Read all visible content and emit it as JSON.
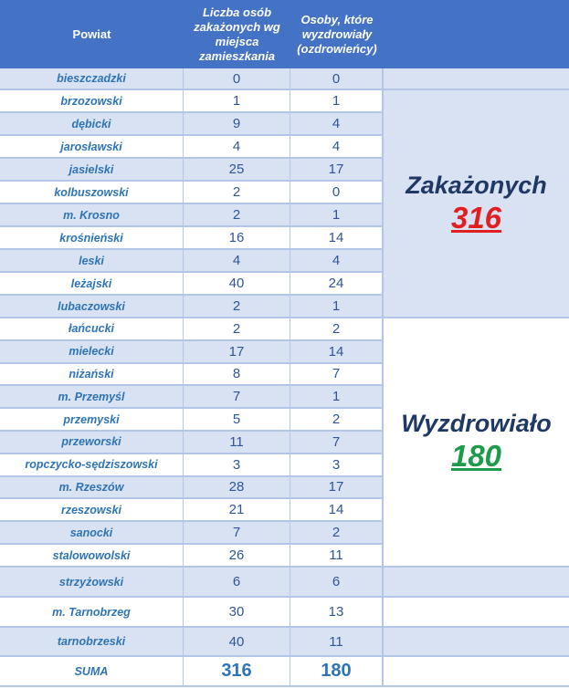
{
  "header": {
    "col1": "Powiat",
    "col2": "Liczba osób zakażonych wg miejsca zamieszkania",
    "col3": "Osoby, które wyzdrowiały (ozdrowieńcy)"
  },
  "rows": [
    {
      "name": "bieszczadzki",
      "infected": "0",
      "recovered": "0"
    },
    {
      "name": "brzozowski",
      "infected": "1",
      "recovered": "1"
    },
    {
      "name": "dębicki",
      "infected": "9",
      "recovered": "4"
    },
    {
      "name": "jarosławski",
      "infected": "4",
      "recovered": "4"
    },
    {
      "name": "jasielski",
      "infected": "25",
      "recovered": "17"
    },
    {
      "name": "kolbuszowski",
      "infected": "2",
      "recovered": "0"
    },
    {
      "name": "m. Krosno",
      "infected": "2",
      "recovered": "1"
    },
    {
      "name": "krośnieński",
      "infected": "16",
      "recovered": "14"
    },
    {
      "name": "leski",
      "infected": "4",
      "recovered": "4"
    },
    {
      "name": "leżajski",
      "infected": "40",
      "recovered": "24"
    },
    {
      "name": "lubaczowski",
      "infected": "2",
      "recovered": "1"
    },
    {
      "name": "łańcucki",
      "infected": "2",
      "recovered": "2"
    },
    {
      "name": "mielecki",
      "infected": "17",
      "recovered": "14"
    },
    {
      "name": "niżański",
      "infected": "8",
      "recovered": "7"
    },
    {
      "name": "m. Przemyśl",
      "infected": "7",
      "recovered": "1"
    },
    {
      "name": "przemyski",
      "infected": "5",
      "recovered": "2"
    },
    {
      "name": "przeworski",
      "infected": "11",
      "recovered": "7"
    },
    {
      "name": "ropczycko-sędziszowski",
      "infected": "3",
      "recovered": "3"
    },
    {
      "name": "m. Rzeszów",
      "infected": "28",
      "recovered": "17"
    },
    {
      "name": "rzeszowski",
      "infected": "21",
      "recovered": "14"
    },
    {
      "name": "sanocki",
      "infected": "7",
      "recovered": "2"
    },
    {
      "name": "stalowowolski",
      "infected": "26",
      "recovered": "11"
    },
    {
      "name": "strzyżowski",
      "infected": "6",
      "recovered": "6"
    },
    {
      "name": "m. Tarnobrzeg",
      "infected": "30",
      "recovered": "13"
    },
    {
      "name": "tarnobrzeski",
      "infected": "40",
      "recovered": "11"
    }
  ],
  "sum": {
    "label": "SUMA",
    "infected": "316",
    "recovered": "180"
  },
  "summary": {
    "infected_label": "Zakażonych",
    "infected_value": "316",
    "infected_color": "#e02020",
    "recovered_label": "Wyzdrowiało",
    "recovered_value": "180",
    "recovered_color": "#1e9b4a"
  }
}
